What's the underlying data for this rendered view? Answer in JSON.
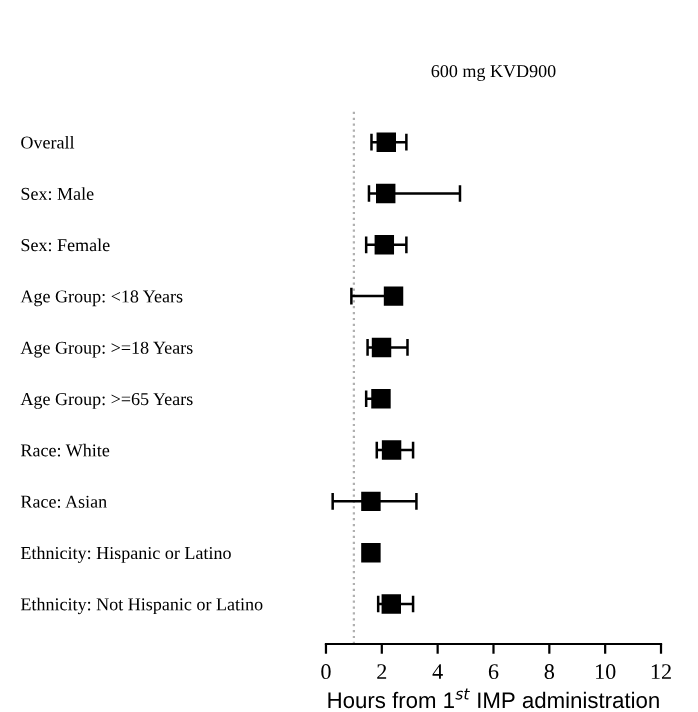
{
  "chart_data": {
    "type": "scatter",
    "orientation": "horizontal",
    "title": "600 mg KVD900",
    "xlabel": "Hours from 1$^{st}$ IMP administration",
    "categories": [
      "Overall",
      "Sex: Male",
      "Sex: Female",
      "Age Group: <18 Years",
      "Age Group: >=18 Years",
      "Age Group: >=65 Years",
      "Race: White",
      "Race: Asian",
      "Ethnicity: Hispanic or Latino",
      "Ethnicity: Not Hispanic or Latino"
    ],
    "values": [
      2.16,
      2.14,
      2.09,
      2.42,
      1.99,
      1.97,
      2.35,
      1.61,
      1.61,
      2.34
    ],
    "errors": [
      [
        1.63,
        2.88
      ],
      [
        1.54,
        4.8
      ],
      [
        1.44,
        2.88
      ],
      [
        0.91,
        2.5
      ],
      [
        1.49,
        2.92
      ],
      [
        1.44,
        2.1
      ],
      [
        1.82,
        3.12
      ],
      [
        0.24,
        3.24
      ],
      [
        1.47,
        1.7
      ],
      [
        1.87,
        3.12
      ]
    ],
    "color": "#000000",
    "marker": "square",
    "xlim": [
      0,
      12
    ],
    "xticks": [
      0,
      2,
      4,
      6,
      8,
      10,
      12
    ],
    "ref_lines": [
      {
        "axis": "x",
        "value": 1,
        "color": "#b0b0b0",
        "line_style": "dotted"
      }
    ],
    "grid": false,
    "legend": false
  }
}
